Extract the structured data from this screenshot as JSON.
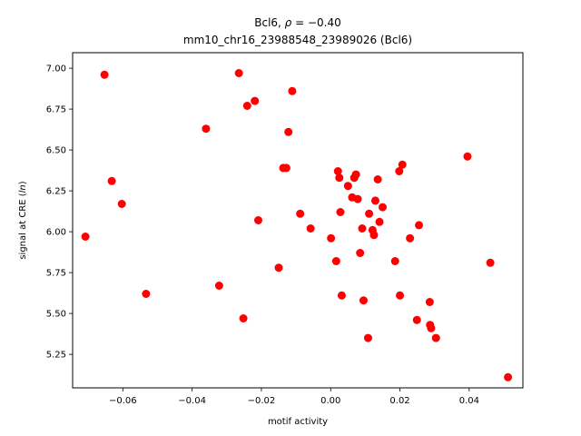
{
  "chart_data": {
    "type": "scatter",
    "title_main": "Bcl6, ",
    "title_rho_symbol": "ρ",
    "title_rho_value": " = −0.40",
    "subtitle": "mm10_chr16_23988548_23989026 (Bcl6)",
    "xlabel": "motif activity",
    "ylabel_prefix": "signal at CRE (",
    "ylabel_italic": "ln",
    "ylabel_suffix": ")",
    "xlim": [
      -0.0745,
      0.0555
    ],
    "ylim": [
      5.045,
      7.095
    ],
    "xticks": [
      {
        "value": -0.06,
        "label": "−0.06"
      },
      {
        "value": -0.04,
        "label": "−0.04"
      },
      {
        "value": -0.02,
        "label": "−0.02"
      },
      {
        "value": 0.0,
        "label": "0.00"
      },
      {
        "value": 0.02,
        "label": "0.02"
      },
      {
        "value": 0.04,
        "label": "0.04"
      }
    ],
    "yticks": [
      {
        "value": 5.25,
        "label": "5.25"
      },
      {
        "value": 5.5,
        "label": "5.50"
      },
      {
        "value": 5.75,
        "label": "5.75"
      },
      {
        "value": 6.0,
        "label": "6.00"
      },
      {
        "value": 6.25,
        "label": "6.25"
      },
      {
        "value": 6.5,
        "label": "6.50"
      },
      {
        "value": 6.75,
        "label": "6.75"
      },
      {
        "value": 7.0,
        "label": "7.00"
      }
    ],
    "marker_color": "#ff0000",
    "grid": false,
    "points": [
      {
        "x": -0.0708,
        "y": 5.97
      },
      {
        "x": -0.0653,
        "y": 6.96
      },
      {
        "x": -0.0632,
        "y": 6.31
      },
      {
        "x": -0.0603,
        "y": 6.17
      },
      {
        "x": -0.0533,
        "y": 5.62
      },
      {
        "x": -0.036,
        "y": 6.63
      },
      {
        "x": -0.0322,
        "y": 5.67
      },
      {
        "x": -0.0265,
        "y": 6.97
      },
      {
        "x": -0.0252,
        "y": 5.47
      },
      {
        "x": -0.0241,
        "y": 6.77
      },
      {
        "x": -0.0219,
        "y": 6.8
      },
      {
        "x": -0.0209,
        "y": 6.07
      },
      {
        "x": -0.015,
        "y": 5.78
      },
      {
        "x": -0.0137,
        "y": 6.39
      },
      {
        "x": -0.0128,
        "y": 6.39
      },
      {
        "x": -0.0122,
        "y": 6.61
      },
      {
        "x": -0.0111,
        "y": 6.86
      },
      {
        "x": -0.0088,
        "y": 6.11
      },
      {
        "x": -0.0058,
        "y": 6.02
      },
      {
        "x": 0.0001,
        "y": 5.96
      },
      {
        "x": 0.0016,
        "y": 5.82
      },
      {
        "x": 0.0021,
        "y": 6.37
      },
      {
        "x": 0.0025,
        "y": 6.33
      },
      {
        "x": 0.0028,
        "y": 6.12
      },
      {
        "x": 0.0032,
        "y": 5.61
      },
      {
        "x": 0.005,
        "y": 6.28
      },
      {
        "x": 0.0062,
        "y": 6.21
      },
      {
        "x": 0.0068,
        "y": 6.33
      },
      {
        "x": 0.0073,
        "y": 6.35
      },
      {
        "x": 0.0078,
        "y": 6.2
      },
      {
        "x": 0.0085,
        "y": 5.87
      },
      {
        "x": 0.0091,
        "y": 6.02
      },
      {
        "x": 0.0095,
        "y": 5.58
      },
      {
        "x": 0.0108,
        "y": 5.35
      },
      {
        "x": 0.0111,
        "y": 6.11
      },
      {
        "x": 0.0121,
        "y": 6.01
      },
      {
        "x": 0.0125,
        "y": 5.98
      },
      {
        "x": 0.0129,
        "y": 6.19
      },
      {
        "x": 0.0136,
        "y": 6.32
      },
      {
        "x": 0.0141,
        "y": 6.06
      },
      {
        "x": 0.015,
        "y": 6.15
      },
      {
        "x": 0.0186,
        "y": 5.82
      },
      {
        "x": 0.0198,
        "y": 6.37
      },
      {
        "x": 0.02,
        "y": 5.61
      },
      {
        "x": 0.0207,
        "y": 6.41
      },
      {
        "x": 0.0229,
        "y": 5.96
      },
      {
        "x": 0.0249,
        "y": 5.46
      },
      {
        "x": 0.0255,
        "y": 6.04
      },
      {
        "x": 0.0286,
        "y": 5.57
      },
      {
        "x": 0.0287,
        "y": 5.43
      },
      {
        "x": 0.029,
        "y": 5.41
      },
      {
        "x": 0.0304,
        "y": 5.35
      },
      {
        "x": 0.0395,
        "y": 6.46
      },
      {
        "x": 0.0461,
        "y": 5.81
      },
      {
        "x": 0.0512,
        "y": 5.11
      }
    ]
  }
}
